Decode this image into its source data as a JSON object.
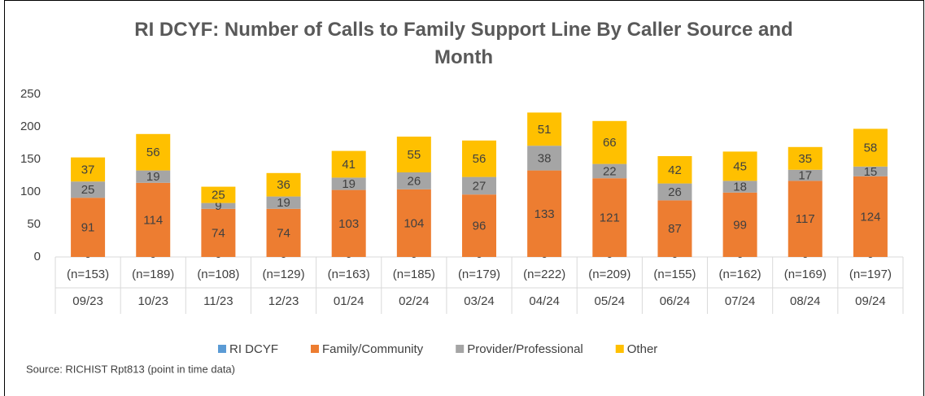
{
  "chart_data": {
    "type": "stacked_bar",
    "title": "RI DCYF: Number of Calls to Family Support Line By Caller Source and Month",
    "categories": [
      "09/23",
      "10/23",
      "11/23",
      "12/23",
      "01/24",
      "02/24",
      "03/24",
      "04/24",
      "05/24",
      "06/24",
      "07/24",
      "08/24",
      "09/24"
    ],
    "category_sublabels": [
      "(n=153)",
      "(n=189)",
      "(n=108)",
      "(n=129)",
      "(n=163)",
      "(n=185)",
      "(n=179)",
      "(n=222)",
      "(n=209)",
      "(n=155)",
      "(n=162)",
      "(n=169)",
      "(n=197)"
    ],
    "series": [
      {
        "name": "RI DCYF",
        "color": "#5b9bd5",
        "values": [
          0,
          0,
          0,
          0,
          0,
          0,
          0,
          0,
          0,
          0,
          0,
          0,
          0
        ]
      },
      {
        "name": "Family/Community",
        "color": "#ed7d31",
        "values": [
          91,
          114,
          74,
          74,
          103,
          104,
          96,
          133,
          121,
          87,
          99,
          117,
          124
        ]
      },
      {
        "name": "Provider/Professional",
        "color": "#a5a5a5",
        "values": [
          25,
          19,
          9,
          19,
          19,
          26,
          27,
          38,
          22,
          26,
          18,
          17,
          15
        ]
      },
      {
        "name": "Other",
        "color": "#ffc000",
        "values": [
          37,
          56,
          25,
          36,
          41,
          55,
          56,
          51,
          66,
          42,
          45,
          35,
          58
        ]
      }
    ],
    "ylim": [
      0,
      250
    ],
    "yticks": [
      0,
      50,
      100,
      150,
      200,
      250
    ],
    "grid": false,
    "legend": "bottom",
    "source": "Source: RICHIST Rpt813 (point in time data)"
  }
}
